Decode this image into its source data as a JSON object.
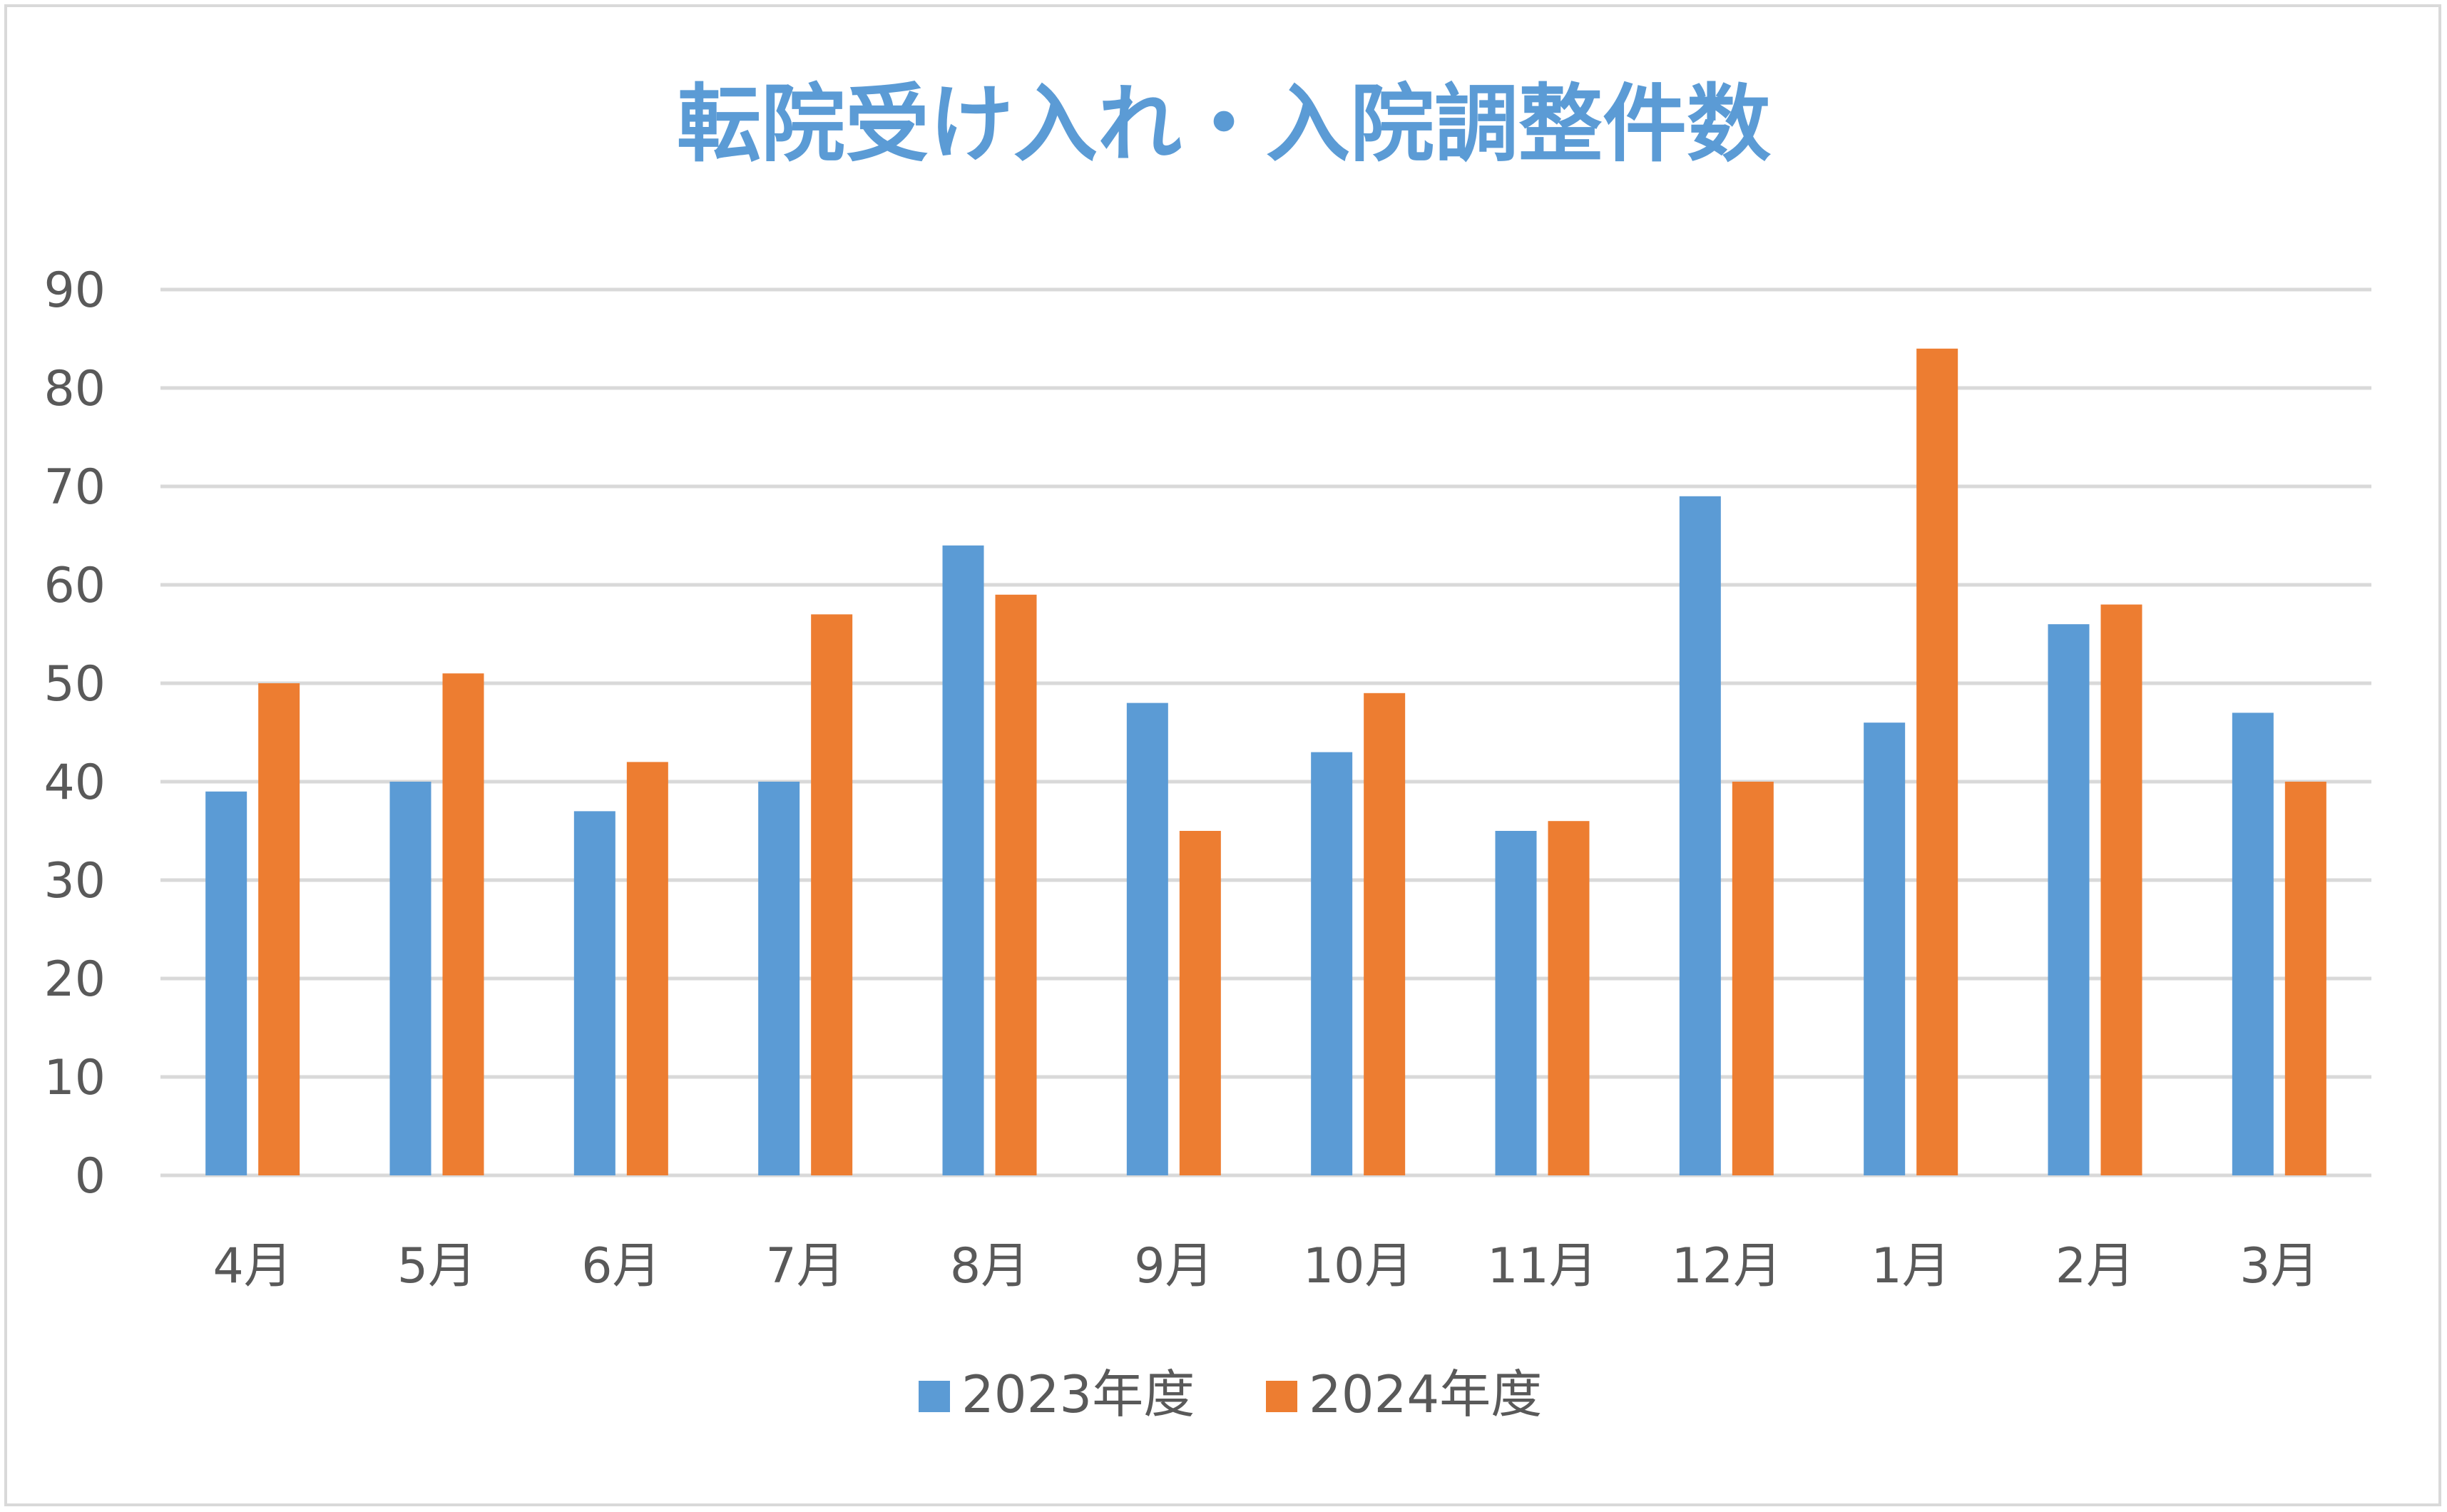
{
  "chart_data": {
    "type": "bar",
    "title": "転院受け入れ・入院調整件数",
    "categories": [
      "4月",
      "5月",
      "6月",
      "7月",
      "8月",
      "9月",
      "10月",
      "11月",
      "12月",
      "1月",
      "2月",
      "3月"
    ],
    "series": [
      {
        "name": "2023年度",
        "color": "#5b9bd5",
        "values": [
          39,
          40,
          37,
          40,
          64,
          48,
          43,
          35,
          69,
          46,
          56,
          47
        ]
      },
      {
        "name": "2024年度",
        "color": "#ed7d31",
        "values": [
          50,
          51,
          42,
          57,
          59,
          35,
          49,
          36,
          40,
          84,
          58,
          40
        ]
      }
    ],
    "xlabel": "",
    "ylabel": "",
    "ylim": [
      0,
      90
    ],
    "yticks": [
      0,
      10,
      20,
      30,
      40,
      50,
      60,
      70,
      80,
      90
    ],
    "grid": true,
    "legend": "bottom",
    "colors": {
      "title": "#5b9bd5",
      "grid": "#d9d9d9",
      "axis_text": "#595959"
    }
  }
}
